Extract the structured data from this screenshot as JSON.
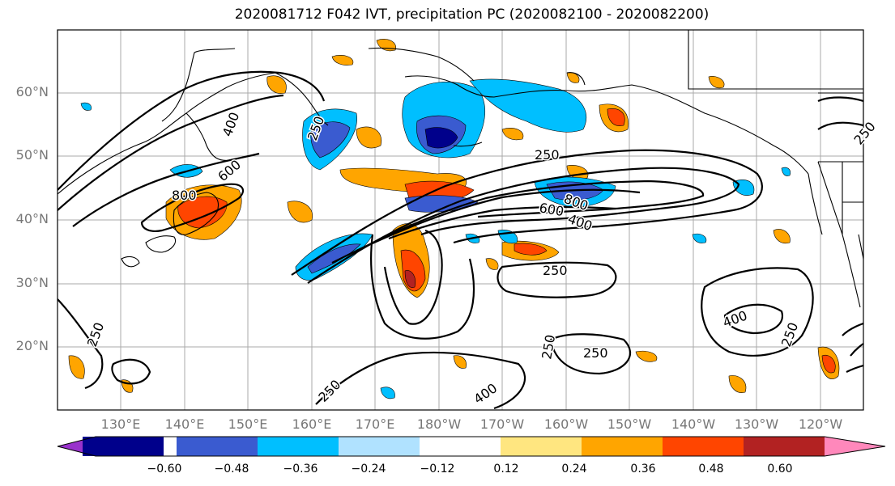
{
  "title": "2020081712 F042 IVT, precipitation PC (2020082100 - 2020082200)",
  "lat_labels": [
    "60°N",
    "50°N",
    "40°N",
    "30°N",
    "20°N"
  ],
  "lon_labels": [
    "130°E",
    "140°E",
    "150°E",
    "160°E",
    "170°E",
    "180°W",
    "170°W",
    "160°W",
    "150°W",
    "140°W",
    "130°W",
    "120°W"
  ],
  "colorbar": {
    "ticks": [
      "−0.60",
      "−0.48",
      "−0.36",
      "−0.24",
      "−0.12",
      "0.12",
      "0.24",
      "0.36",
      "0.48",
      "0.60"
    ],
    "colors": [
      "#9932cc",
      "#00008b",
      "#3a5bd0",
      "#00bfff",
      "#b0e2ff",
      "#ffffff",
      "#ffe680",
      "#ffa500",
      "#ff4500",
      "#b22222",
      "#ff88bb"
    ]
  },
  "contour_labels": [
    "250",
    "400",
    "600",
    "800",
    "250",
    "250",
    "400",
    "600",
    "800",
    "250",
    "400",
    "250",
    "250",
    "400",
    "250",
    "250",
    "250"
  ]
}
